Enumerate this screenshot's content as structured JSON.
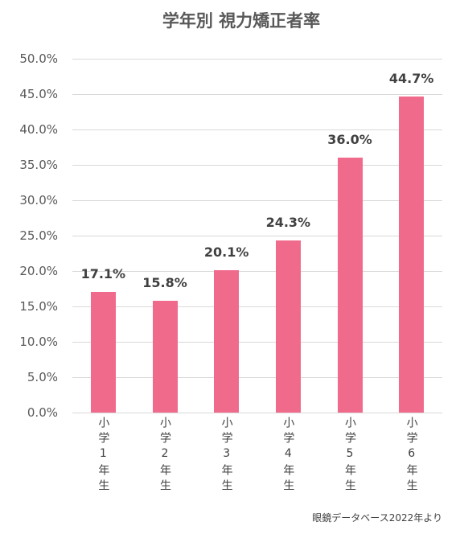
{
  "chart_data": {
    "type": "bar",
    "title": "学年別 視力矯正者率",
    "categories": [
      "小学1年生",
      "小学2年生",
      "小学3年生",
      "小学4年生",
      "小学5年生",
      "小学6年生"
    ],
    "values": [
      17.1,
      15.8,
      20.1,
      24.3,
      36.0,
      44.7
    ],
    "data_labels": [
      "17.1%",
      "15.8%",
      "20.1%",
      "24.3%",
      "36.0%",
      "44.7%"
    ],
    "ylim": [
      0,
      50
    ],
    "ytick_values": [
      0,
      5,
      10,
      15,
      20,
      25,
      30,
      35,
      40,
      45,
      50
    ],
    "ytick_labels": [
      "0.0%",
      "5.0%",
      "10.0%",
      "15.0%",
      "20.0%",
      "25.0%",
      "30.0%",
      "35.0%",
      "40.0%",
      "45.0%",
      "50.0%"
    ],
    "grid": true,
    "legend": false,
    "bar_color": "#F06A8C",
    "source_note": "眼鏡データベース2022年より"
  }
}
